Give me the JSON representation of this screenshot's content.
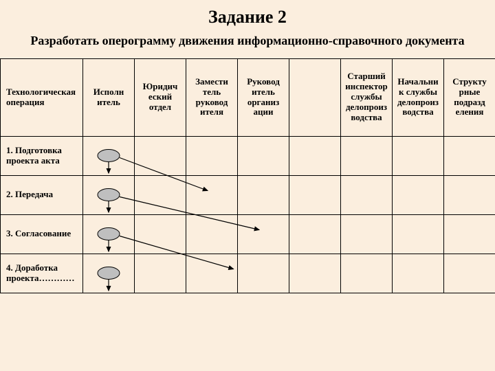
{
  "heading": "Задание 2",
  "subheading": "Разработать оперограмму движения информационно-справочного документа",
  "columns": [
    "Технологическая операция",
    "Исполн итель",
    "Юридич еский отдел",
    "Замести тель руковод ителя",
    "Руковод итель организ ации",
    "",
    "Старший инспектор службы делопроиз водства",
    "Начальни к службы делопроиз водства",
    "Структу рные подразд еления"
  ],
  "rows": [
    "1. Подготовка проекта акта",
    "2. Передача",
    "3. Согласование",
    "4. Доработка проекта…………"
  ],
  "chart": {
    "background": "#fbeede",
    "border_color": "#000000",
    "node_fill": "#bfbfbf",
    "node_stroke": "#000000",
    "edge_stroke": "#000000",
    "edge_width": 1.2,
    "nodes": [
      {
        "id": "n1",
        "row": 0,
        "col": 1
      },
      {
        "id": "n2",
        "row": 1,
        "col": 1
      },
      {
        "id": "n3",
        "row": 2,
        "col": 1
      },
      {
        "id": "n4",
        "row": 3,
        "col": 1
      }
    ],
    "arrows_down_at_col1": [
      0,
      1,
      2,
      3
    ],
    "edges": [
      {
        "from": "n1",
        "toCol": 3
      },
      {
        "from": "n2",
        "toCol": 4
      },
      {
        "from": "n3",
        "toCol": 3.5
      }
    ]
  }
}
